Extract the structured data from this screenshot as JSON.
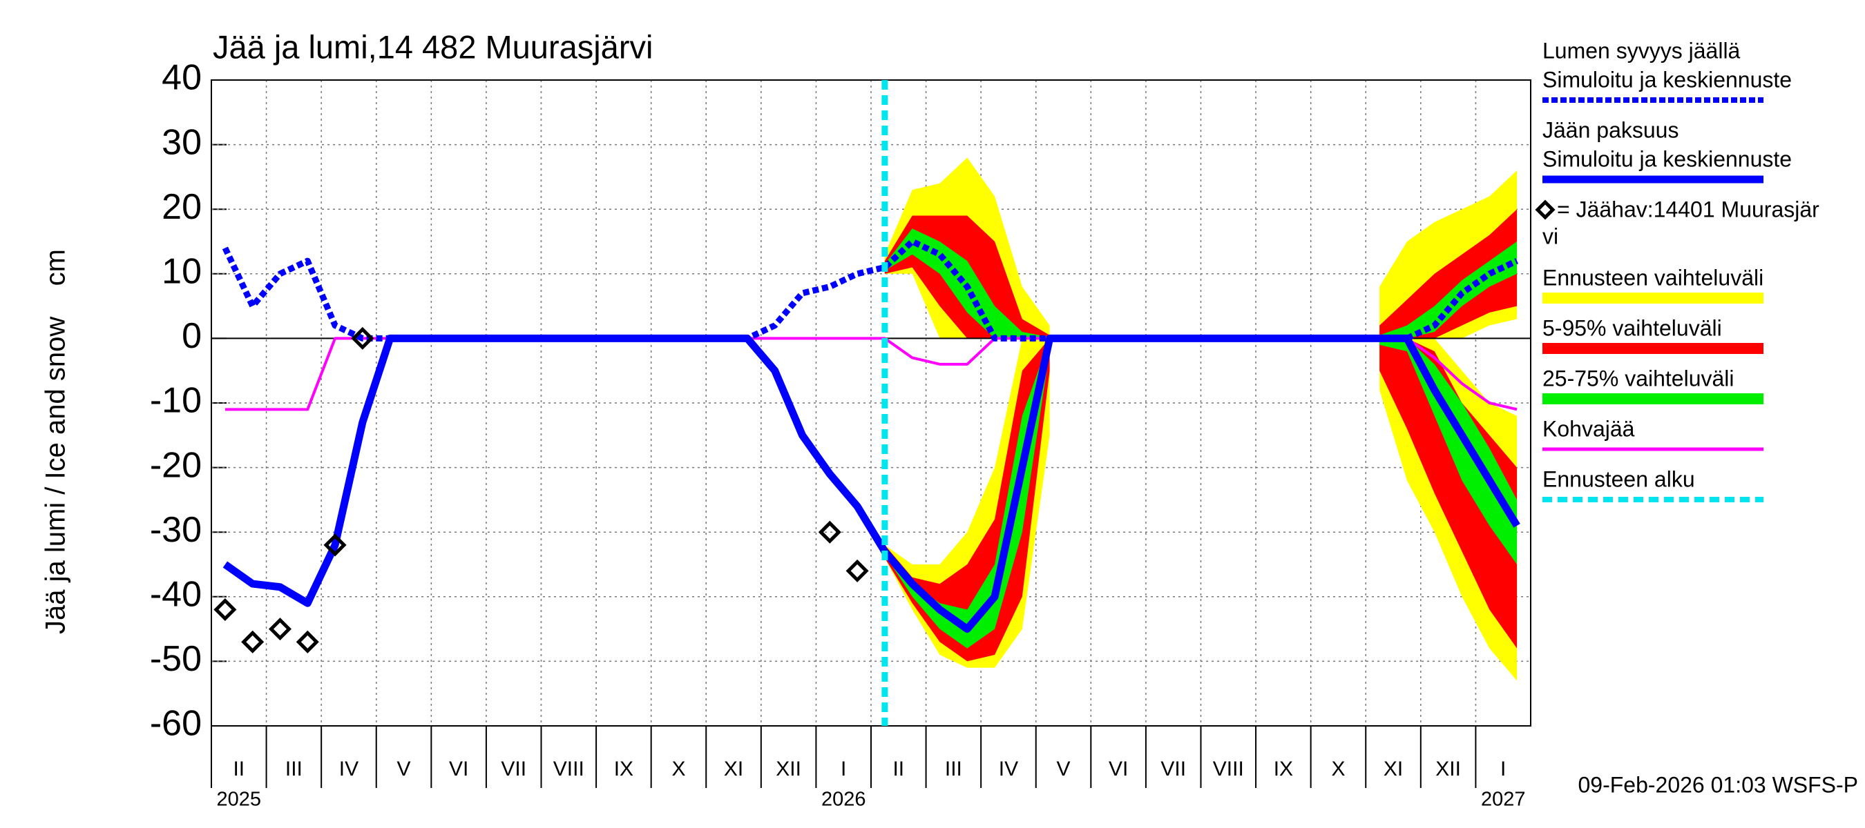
{
  "chart_data": {
    "type": "line",
    "title": "Jää ja lumi,14 482 Muurasjärvi",
    "ylabel": "Jää ja lumi / Ice and snow    cm",
    "footer": "09-Feb-2026 01:03 WSFS-P",
    "categories": [
      "II",
      null,
      "III",
      null,
      "IV",
      null,
      "V",
      null,
      "VI",
      null,
      "VII",
      null,
      "VIII",
      null,
      "IX",
      null,
      "X",
      null,
      "XI",
      null,
      "XII",
      null,
      "I",
      null,
      "II",
      null,
      "III",
      null,
      "IV",
      null,
      "V",
      null,
      "VI",
      null,
      "VII",
      null,
      "VIII",
      null,
      "IX",
      null,
      "X",
      null,
      "XI",
      null,
      "XII",
      null,
      "I",
      null
    ],
    "years": [
      "2025",
      null,
      null,
      null,
      null,
      null,
      null,
      null,
      null,
      null,
      null,
      null,
      null,
      null,
      null,
      null,
      null,
      null,
      null,
      null,
      null,
      null,
      "2026",
      null,
      null,
      null,
      null,
      null,
      null,
      null,
      null,
      null,
      null,
      null,
      null,
      null,
      null,
      null,
      null,
      null,
      null,
      null,
      null,
      null,
      null,
      null,
      "2027",
      null
    ],
    "ylim": [
      -60,
      40
    ],
    "yticks": [
      -60,
      -50,
      -40,
      -30,
      -20,
      -10,
      0,
      10,
      20,
      30,
      40
    ],
    "grid": true,
    "series": [
      {
        "name": [
          "Lumen syvyys jäällä",
          "Simuloitu ja keskiennuste"
        ],
        "color": "#0000ff",
        "dashed": true,
        "values": [
          14,
          5,
          10,
          12,
          2,
          0,
          0,
          0,
          0,
          0,
          0,
          0,
          0,
          0,
          0,
          0,
          0,
          0,
          0,
          0,
          2,
          7,
          8,
          10,
          11,
          15,
          13,
          8,
          0,
          0,
          0,
          0,
          0,
          0,
          0,
          0,
          0,
          0,
          0,
          0,
          0,
          0,
          0,
          0,
          2,
          7,
          10,
          12
        ]
      },
      {
        "name": [
          "Jään paksuus",
          "Simuloitu ja keskiennuste"
        ],
        "color": "#0000ff",
        "values": [
          -35,
          -38,
          -38.5,
          -41,
          -32,
          -13,
          0,
          0,
          0,
          0,
          0,
          0,
          0,
          0,
          0,
          0,
          0,
          0,
          0,
          0,
          -5,
          -15,
          -21,
          -26,
          -33,
          -38,
          -42,
          -45,
          -40,
          -20,
          0,
          0,
          0,
          0,
          0,
          0,
          0,
          0,
          0,
          0,
          0,
          0,
          0,
          0,
          -8,
          -15,
          -22,
          -29
        ]
      },
      {
        "name": [
          "= Jäähav:14401 Muurasjär",
          "vi"
        ],
        "color": "#000000",
        "marker": "diamond",
        "values": [
          -42,
          -47,
          -45,
          -47,
          -32,
          0,
          null,
          null,
          null,
          null,
          null,
          null,
          null,
          null,
          null,
          null,
          null,
          null,
          null,
          null,
          null,
          null,
          -30,
          -36,
          null,
          null,
          null,
          null,
          null,
          null,
          null,
          null,
          null,
          null,
          null,
          null,
          null,
          null,
          null,
          null,
          null,
          null,
          null,
          null,
          null,
          null,
          null,
          null
        ]
      },
      {
        "name": [
          "Kohvajää"
        ],
        "color": "#ff00ff",
        "values": [
          -11,
          -11,
          -11,
          -11,
          0,
          0,
          0,
          0,
          0,
          0,
          0,
          0,
          0,
          0,
          0,
          0,
          0,
          0,
          0,
          0,
          0,
          0,
          0,
          0,
          0,
          -3,
          -4,
          -4,
          0,
          0,
          0,
          0,
          0,
          0,
          0,
          0,
          0,
          0,
          0,
          0,
          0,
          0,
          0,
          0,
          -3,
          -7,
          -10,
          -11
        ]
      }
    ],
    "bands": [
      {
        "name": [
          "Ennusteen vaihteluväli"
        ],
        "color": "#ffff00",
        "ice_low": [
          null,
          null,
          null,
          null,
          null,
          null,
          null,
          null,
          null,
          null,
          null,
          null,
          null,
          null,
          null,
          null,
          null,
          null,
          null,
          null,
          null,
          null,
          null,
          null,
          -34,
          -42,
          -49,
          -51,
          -51,
          -45,
          -15,
          null,
          null,
          null,
          null,
          null,
          null,
          null,
          null,
          null,
          null,
          null,
          -8,
          -22,
          -30,
          -40,
          -48,
          -53
        ],
        "ice_high": [
          null,
          null,
          null,
          null,
          null,
          null,
          null,
          null,
          null,
          null,
          null,
          null,
          null,
          null,
          null,
          null,
          null,
          null,
          null,
          null,
          null,
          null,
          null,
          null,
          -32,
          -35,
          -35,
          -30,
          -20,
          0,
          0,
          null,
          null,
          null,
          null,
          null,
          null,
          null,
          null,
          null,
          null,
          null,
          0,
          0,
          0,
          -5,
          -10,
          -12
        ],
        "snow_low": [
          null,
          null,
          null,
          null,
          null,
          null,
          null,
          null,
          null,
          null,
          null,
          null,
          null,
          null,
          null,
          null,
          null,
          null,
          null,
          null,
          null,
          null,
          null,
          null,
          10,
          10,
          0,
          0,
          0,
          0,
          0,
          null,
          null,
          null,
          null,
          null,
          null,
          null,
          null,
          null,
          null,
          null,
          0,
          0,
          0,
          0,
          2,
          3
        ],
        "snow_high": [
          null,
          null,
          null,
          null,
          null,
          null,
          null,
          null,
          null,
          null,
          null,
          null,
          null,
          null,
          null,
          null,
          null,
          null,
          null,
          null,
          null,
          null,
          null,
          null,
          13,
          23,
          24,
          28,
          22,
          8,
          2,
          null,
          null,
          null,
          null,
          null,
          null,
          null,
          null,
          null,
          null,
          null,
          8,
          15,
          18,
          20,
          22,
          26
        ]
      },
      {
        "name": [
          "5-95% vaihteluväli"
        ],
        "color": "#ff0000",
        "ice_low": [
          null,
          null,
          null,
          null,
          null,
          null,
          null,
          null,
          null,
          null,
          null,
          null,
          null,
          null,
          null,
          null,
          null,
          null,
          null,
          null,
          null,
          null,
          null,
          null,
          -34,
          -41,
          -47,
          -50,
          -49,
          -40,
          -5,
          null,
          null,
          null,
          null,
          null,
          null,
          null,
          null,
          null,
          null,
          null,
          -5,
          -14,
          -24,
          -33,
          -42,
          -48
        ],
        "ice_high": [
          null,
          null,
          null,
          null,
          null,
          null,
          null,
          null,
          null,
          null,
          null,
          null,
          null,
          null,
          null,
          null,
          null,
          null,
          null,
          null,
          null,
          null,
          null,
          null,
          -32,
          -37,
          -38,
          -35,
          -28,
          -5,
          0,
          null,
          null,
          null,
          null,
          null,
          null,
          null,
          null,
          null,
          null,
          null,
          0,
          0,
          -2,
          -10,
          -15,
          -20
        ],
        "snow_low": [
          null,
          null,
          null,
          null,
          null,
          null,
          null,
          null,
          null,
          null,
          null,
          null,
          null,
          null,
          null,
          null,
          null,
          null,
          null,
          null,
          null,
          null,
          null,
          null,
          10,
          11,
          5,
          0,
          0,
          0,
          0,
          null,
          null,
          null,
          null,
          null,
          null,
          null,
          null,
          null,
          null,
          null,
          0,
          0,
          0,
          2,
          4,
          5
        ],
        "snow_high": [
          null,
          null,
          null,
          null,
          null,
          null,
          null,
          null,
          null,
          null,
          null,
          null,
          null,
          null,
          null,
          null,
          null,
          null,
          null,
          null,
          null,
          null,
          null,
          null,
          12,
          19,
          19,
          19,
          15,
          3,
          0.5,
          null,
          null,
          null,
          null,
          null,
          null,
          null,
          null,
          null,
          null,
          null,
          2,
          6,
          10,
          13,
          16,
          20
        ]
      },
      {
        "name": [
          "25-75% vaihteluväli"
        ],
        "color": "#00ee00",
        "ice_low": [
          null,
          null,
          null,
          null,
          null,
          null,
          null,
          null,
          null,
          null,
          null,
          null,
          null,
          null,
          null,
          null,
          null,
          null,
          null,
          null,
          null,
          null,
          null,
          null,
          -33.5,
          -40,
          -45,
          -48,
          -45,
          -30,
          -2,
          null,
          null,
          null,
          null,
          null,
          null,
          null,
          null,
          null,
          null,
          null,
          -1,
          -2,
          -12,
          -22,
          -29,
          -35
        ],
        "ice_high": [
          null,
          null,
          null,
          null,
          null,
          null,
          null,
          null,
          null,
          null,
          null,
          null,
          null,
          null,
          null,
          null,
          null,
          null,
          null,
          null,
          null,
          null,
          null,
          null,
          -32.5,
          -38,
          -41,
          -42,
          -35,
          -12,
          0,
          null,
          null,
          null,
          null,
          null,
          null,
          null,
          null,
          null,
          null,
          null,
          0,
          0,
          -4,
          -10,
          -17,
          -25
        ],
        "snow_low": [
          null,
          null,
          null,
          null,
          null,
          null,
          null,
          null,
          null,
          null,
          null,
          null,
          null,
          null,
          null,
          null,
          null,
          null,
          null,
          null,
          null,
          null,
          null,
          null,
          10.5,
          13,
          10,
          4,
          0,
          0,
          0,
          null,
          null,
          null,
          null,
          null,
          null,
          null,
          null,
          null,
          null,
          null,
          0,
          0,
          1,
          5,
          8,
          10
        ],
        "snow_high": [
          null,
          null,
          null,
          null,
          null,
          null,
          null,
          null,
          null,
          null,
          null,
          null,
          null,
          null,
          null,
          null,
          null,
          null,
          null,
          null,
          null,
          null,
          null,
          null,
          11.5,
          17,
          15,
          12,
          5,
          1,
          0.2,
          null,
          null,
          null,
          null,
          null,
          null,
          null,
          null,
          null,
          null,
          null,
          0.5,
          2,
          5,
          9,
          12,
          15
        ]
      }
    ],
    "forecast_start": {
      "name": [
        "Ennusteen alku"
      ],
      "color": "#00e5ee"
    }
  }
}
